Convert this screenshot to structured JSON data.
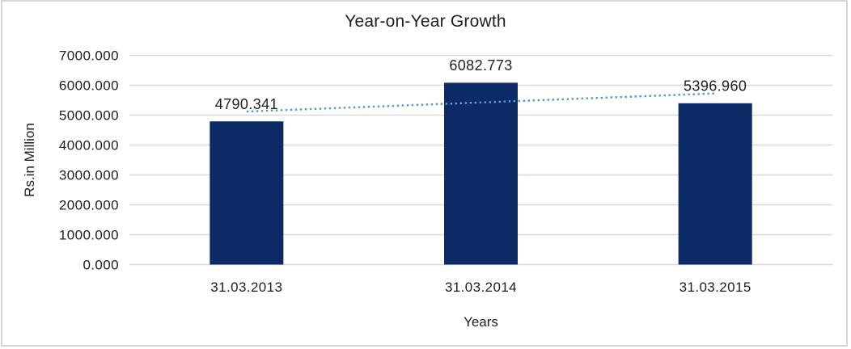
{
  "chart_data": {
    "type": "bar",
    "title": "Year-on-Year Growth",
    "xlabel": "Years",
    "ylabel": "Rs.in Million",
    "categories": [
      "31.03.2013",
      "31.03.2014",
      "31.03.2015"
    ],
    "values": [
      4790.341,
      6082.773,
      5396.96
    ],
    "data_labels": [
      "4790.341",
      "6082.773",
      "5396.960"
    ],
    "ylim": [
      0,
      7000
    ],
    "ytick_step": 1000,
    "ytick_labels": [
      "0.000",
      "1000.000",
      "2000.000",
      "3000.000",
      "4000.000",
      "5000.000",
      "6000.000",
      "7000.000"
    ],
    "grid": true,
    "legend": false,
    "trendline": {
      "type": "linear",
      "style": "dotted",
      "color": "#5B9BD5"
    },
    "colors": {
      "bar": "#0B2A66",
      "gridline": "#D9D9D9",
      "frame_border": "#D5D5D5",
      "text": "#202020",
      "background": "#FFFFFF"
    }
  }
}
